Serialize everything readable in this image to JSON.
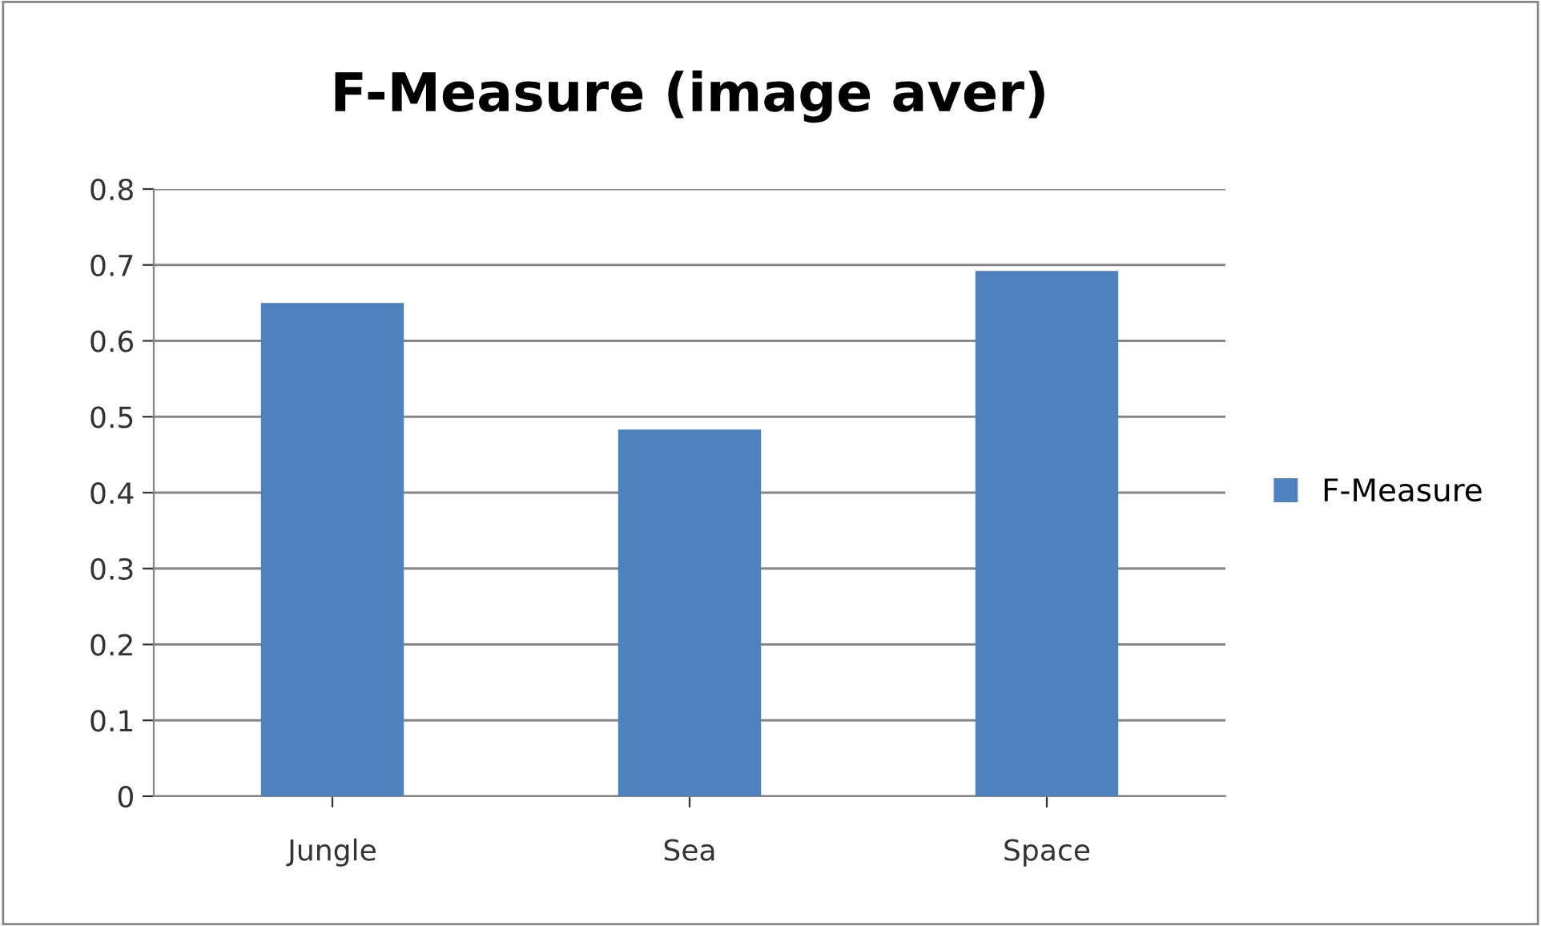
{
  "chart_data": {
    "type": "bar",
    "title": "F-Measure (image aver)",
    "categories": [
      "Jungle",
      "Sea",
      "Space"
    ],
    "series": [
      {
        "name": "F-Measure",
        "color": "#4f81bd",
        "values": [
          0.65,
          0.483,
          0.692
        ]
      }
    ],
    "ylim": [
      0,
      0.8
    ],
    "yticks": [
      0,
      0.1,
      0.2,
      0.3,
      0.4,
      0.5,
      0.6,
      0.7,
      0.8
    ],
    "grid": "y",
    "legend": "right"
  }
}
